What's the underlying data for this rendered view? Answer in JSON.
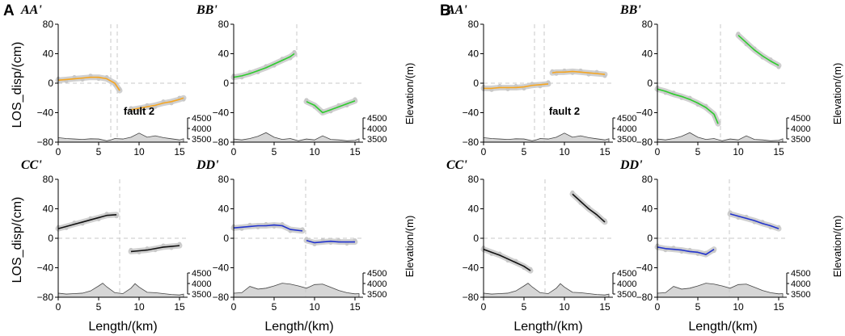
{
  "figure": {
    "panel_letters": [
      "A",
      "B"
    ],
    "ylabel": "LOS_disp/(cm)",
    "xlabel": "Length/(km)",
    "elev_label": "Elevation/(m)"
  },
  "colors": {
    "orange": "#f5a623",
    "green": "#2ecc2e",
    "black": "#111111",
    "blue": "#2233cc",
    "scatter": "#c8c8c8",
    "terrain": "#d6d6d6"
  },
  "chart_data": [
    {
      "group": "A",
      "title": "AA'",
      "type": "line+scatter",
      "color": "orange",
      "xlim": [
        0,
        16
      ],
      "ylim": [
        -80,
        80
      ],
      "xticks": [
        0,
        5,
        10,
        15
      ],
      "yticks": [
        -80,
        -40,
        0,
        40,
        80
      ],
      "fault_x": [
        6.5,
        7.3
      ],
      "annotation": "fault 2",
      "elev_ticks": [
        4500,
        4000,
        3500
      ],
      "elev_range": [
        3500,
        4500
      ],
      "series": [
        {
          "x": [
            0,
            1,
            2,
            3,
            4,
            5,
            6,
            7,
            7.6
          ],
          "y": [
            4,
            5,
            6,
            7,
            8,
            8,
            6,
            0,
            -10
          ]
        },
        {
          "x": [
            9,
            10,
            11,
            12,
            13,
            14,
            15,
            15.5
          ],
          "y": [
            -36,
            -34,
            -32,
            -30,
            -27,
            -25,
            -22,
            -20
          ]
        }
      ],
      "elevation": {
        "x": [
          0,
          1,
          2,
          3,
          4,
          5,
          6,
          6.5,
          7,
          8,
          9,
          10,
          11,
          12,
          13,
          14,
          15,
          15.5
        ],
        "y": [
          3700,
          3660,
          3640,
          3620,
          3650,
          3640,
          3560,
          3600,
          3660,
          3640,
          3720,
          3900,
          3720,
          3780,
          3700,
          3650,
          3600,
          3650
        ]
      }
    },
    {
      "group": "A",
      "title": "BB'",
      "type": "line+scatter",
      "color": "green",
      "xlim": [
        0,
        16
      ],
      "ylim": [
        -80,
        80
      ],
      "xticks": [
        0,
        5,
        10,
        15
      ],
      "yticks": [
        -80,
        -40,
        0,
        40,
        80
      ],
      "fault_x": [
        7.8
      ],
      "annotation": "",
      "elev_ticks": [
        4500,
        4000,
        3500
      ],
      "elev_range": [
        3500,
        4500
      ],
      "series": [
        {
          "x": [
            0,
            1,
            2,
            3,
            4,
            5,
            6,
            7,
            7.5
          ],
          "y": [
            8,
            10,
            13,
            17,
            21,
            26,
            31,
            36,
            40
          ]
        },
        {
          "x": [
            9,
            10,
            11,
            12,
            13,
            14,
            15
          ],
          "y": [
            -25,
            -30,
            -40,
            -36,
            -32,
            -28,
            -24
          ]
        }
      ],
      "elevation": {
        "x": [
          0,
          1,
          2,
          3,
          4,
          5,
          6,
          7,
          8,
          9,
          10,
          11,
          12,
          13,
          14,
          15,
          15.5
        ],
        "y": [
          3640,
          3600,
          3660,
          3760,
          3920,
          3720,
          3620,
          3660,
          3560,
          3640,
          3600,
          3780,
          3620,
          3600,
          3560,
          3580,
          3650
        ]
      }
    },
    {
      "group": "A",
      "title": "CC'",
      "type": "line+scatter",
      "color": "black",
      "xlim": [
        0,
        16
      ],
      "ylim": [
        -80,
        80
      ],
      "xticks": [
        0,
        5,
        10,
        15
      ],
      "yticks": [
        -80,
        -40,
        0,
        40,
        80
      ],
      "fault_x": [
        7.6
      ],
      "annotation": "",
      "elev_ticks": [
        4500,
        4000,
        3500
      ],
      "elev_range": [
        3500,
        4500
      ],
      "series": [
        {
          "x": [
            0,
            1,
            2,
            3,
            4,
            5,
            6,
            7.2
          ],
          "y": [
            13,
            16,
            19,
            22,
            25,
            28,
            31,
            32
          ]
        },
        {
          "x": [
            9,
            10,
            11,
            12,
            13,
            14,
            15
          ],
          "y": [
            -18,
            -17,
            -16,
            -14,
            -12,
            -11,
            -10
          ]
        }
      ],
      "elevation": {
        "x": [
          0,
          1,
          2,
          3,
          4,
          5,
          5.5,
          6,
          7,
          8,
          9,
          9.5,
          10,
          11,
          12,
          13,
          14,
          15,
          15.5
        ],
        "y": [
          3680,
          3640,
          3660,
          3680,
          3780,
          4000,
          4120,
          3960,
          3700,
          3660,
          3900,
          4100,
          3950,
          3720,
          3700,
          3660,
          3620,
          3600,
          3640
        ]
      }
    },
    {
      "group": "A",
      "title": "DD'",
      "type": "line+scatter",
      "color": "blue",
      "xlim": [
        0,
        16
      ],
      "ylim": [
        -80,
        80
      ],
      "xticks": [
        0,
        5,
        10,
        15
      ],
      "yticks": [
        -80,
        -40,
        0,
        40,
        80
      ],
      "fault_x": [
        8.9
      ],
      "annotation": "",
      "elev_ticks": [
        4500,
        4000,
        3500
      ],
      "elev_range": [
        3500,
        4500
      ],
      "series": [
        {
          "x": [
            0,
            1,
            2,
            3,
            4,
            5,
            6,
            7,
            8.5
          ],
          "y": [
            14,
            15,
            16,
            17,
            17,
            18,
            17,
            12,
            10
          ]
        },
        {
          "x": [
            9,
            10,
            11,
            12,
            13,
            14,
            15
          ],
          "y": [
            -3,
            -6,
            -5,
            -4,
            -5,
            -5,
            -5
          ]
        }
      ],
      "elevation": {
        "x": [
          0,
          1,
          2,
          3,
          4,
          5,
          6,
          7,
          8,
          9,
          10,
          11,
          12,
          13,
          14,
          15,
          15.5
        ],
        "y": [
          3680,
          3700,
          3980,
          3860,
          3900,
          4000,
          4120,
          4080,
          4000,
          3900,
          4060,
          4080,
          3940,
          3800,
          3700,
          3650,
          3660
        ]
      }
    },
    {
      "group": "B",
      "title": "AA'",
      "type": "line+scatter",
      "color": "orange",
      "xlim": [
        0,
        16
      ],
      "ylim": [
        -80,
        80
      ],
      "xticks": [
        0,
        5,
        10,
        15
      ],
      "yticks": [
        -80,
        -40,
        0,
        40,
        80
      ],
      "fault_x": [
        6.3,
        7.5
      ],
      "annotation": "fault 2",
      "elev_ticks": [
        4500,
        4000,
        3500
      ],
      "elev_range": [
        3500,
        4500
      ],
      "series": [
        {
          "x": [
            0,
            1,
            2,
            3,
            4,
            5,
            6,
            7,
            8
          ],
          "y": [
            -7,
            -7,
            -6,
            -6,
            -6,
            -5,
            -3,
            -2,
            -1
          ]
        },
        {
          "x": [
            8.5,
            9,
            10,
            11,
            12,
            13,
            14,
            15
          ],
          "y": [
            14,
            15,
            15,
            16,
            15,
            14,
            13,
            12
          ]
        }
      ],
      "elevation": {
        "x": [
          0,
          1,
          2,
          3,
          4,
          5,
          6,
          6.5,
          7,
          8,
          9,
          10,
          11,
          12,
          13,
          14,
          15,
          15.5
        ],
        "y": [
          3700,
          3660,
          3640,
          3620,
          3650,
          3640,
          3560,
          3600,
          3660,
          3640,
          3720,
          3900,
          3720,
          3780,
          3700,
          3650,
          3600,
          3650
        ]
      }
    },
    {
      "group": "B",
      "title": "BB'",
      "type": "line+scatter",
      "color": "green",
      "xlim": [
        0,
        16
      ],
      "ylim": [
        -80,
        80
      ],
      "xticks": [
        0,
        5,
        10,
        15
      ],
      "yticks": [
        -80,
        -40,
        0,
        40,
        80
      ],
      "fault_x": [
        7.8
      ],
      "annotation": "",
      "elev_ticks": [
        4500,
        4000,
        3500
      ],
      "elev_range": [
        3500,
        4500
      ],
      "series": [
        {
          "x": [
            0,
            1,
            2,
            3,
            4,
            5,
            6,
            7,
            7.5
          ],
          "y": [
            -8,
            -11,
            -15,
            -18,
            -22,
            -27,
            -33,
            -42,
            -55
          ]
        },
        {
          "x": [
            10,
            11,
            12,
            13,
            14,
            15
          ],
          "y": [
            65,
            55,
            45,
            37,
            30,
            24
          ]
        }
      ],
      "elevation": {
        "x": [
          0,
          1,
          2,
          3,
          4,
          5,
          6,
          7,
          8,
          9,
          10,
          11,
          12,
          13,
          14,
          15,
          15.5
        ],
        "y": [
          3640,
          3600,
          3660,
          3760,
          3920,
          3720,
          3620,
          3660,
          3560,
          3640,
          3600,
          3780,
          3620,
          3600,
          3560,
          3580,
          3650
        ]
      }
    },
    {
      "group": "B",
      "title": "CC'",
      "type": "line+scatter",
      "color": "black",
      "xlim": [
        0,
        16
      ],
      "ylim": [
        -80,
        80
      ],
      "xticks": [
        0,
        5,
        10,
        15
      ],
      "yticks": [
        -80,
        -40,
        0,
        40,
        80
      ],
      "fault_x": [
        7.6
      ],
      "annotation": "",
      "elev_ticks": [
        4500,
        4000,
        3500
      ],
      "elev_range": [
        3500,
        4500
      ],
      "series": [
        {
          "x": [
            0,
            1,
            2,
            3,
            4,
            5,
            5.8
          ],
          "y": [
            -15,
            -19,
            -23,
            -28,
            -33,
            -38,
            -44
          ]
        },
        {
          "x": [
            11,
            12,
            13,
            14,
            15
          ],
          "y": [
            60,
            50,
            40,
            32,
            22
          ]
        }
      ],
      "elevation": {
        "x": [
          0,
          1,
          2,
          3,
          4,
          5,
          5.5,
          6,
          7,
          8,
          9,
          9.5,
          10,
          11,
          12,
          13,
          14,
          15,
          15.5
        ],
        "y": [
          3680,
          3640,
          3660,
          3680,
          3780,
          4000,
          4120,
          3960,
          3700,
          3660,
          3900,
          4100,
          3950,
          3720,
          3700,
          3660,
          3620,
          3600,
          3640
        ]
      }
    },
    {
      "group": "B",
      "title": "DD'",
      "type": "line+scatter",
      "color": "blue",
      "xlim": [
        0,
        16
      ],
      "ylim": [
        -80,
        80
      ],
      "xticks": [
        0,
        5,
        10,
        15
      ],
      "yticks": [
        -80,
        -40,
        0,
        40,
        80
      ],
      "fault_x": [
        8.9
      ],
      "annotation": "",
      "elev_ticks": [
        4500,
        4000,
        3500
      ],
      "elev_range": [
        3500,
        4500
      ],
      "series": [
        {
          "x": [
            0,
            1,
            2,
            3,
            4,
            5,
            6,
            7
          ],
          "y": [
            -12,
            -14,
            -15,
            -16,
            -18,
            -19,
            -22,
            -15
          ]
        },
        {
          "x": [
            9,
            10,
            11,
            12,
            13,
            14,
            15
          ],
          "y": [
            33,
            30,
            27,
            24,
            20,
            17,
            13
          ]
        }
      ],
      "elevation": {
        "x": [
          0,
          1,
          2,
          3,
          4,
          5,
          6,
          7,
          8,
          9,
          10,
          11,
          12,
          13,
          14,
          15,
          15.5
        ],
        "y": [
          3680,
          3700,
          3980,
          3860,
          3900,
          4000,
          4120,
          4080,
          4000,
          3900,
          4060,
          4080,
          3940,
          3800,
          3700,
          3650,
          3660
        ]
      }
    }
  ]
}
